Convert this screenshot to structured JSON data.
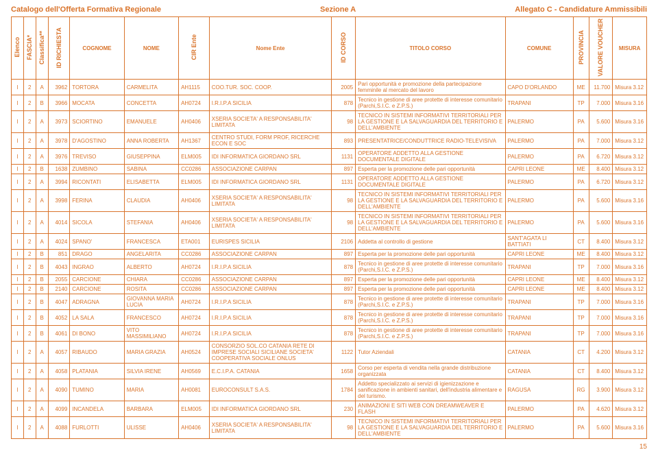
{
  "header": {
    "left": "Catalogo dell'Offerta Formativa Regionale",
    "center": "Sezione A",
    "right": "Allegato C - Candidature Ammissibili"
  },
  "columns": [
    "Elenco",
    "FASCIA*",
    "Classifica**",
    "ID RICHIESTA",
    "COGNOME",
    "NOME",
    "CIR Ente",
    "Nome Ente",
    "ID CORSO",
    "TITOLO CORSO",
    "COMUNE",
    "PROVINCIA",
    "VALORE VOUCHER",
    "MISURA"
  ],
  "rows": [
    [
      "I",
      "2",
      "A",
      "3962",
      "TORTORA",
      "CARMELITA",
      "AH1115",
      "COO.TUR. SOC. COOP.",
      "2005",
      "Pari opportunità e promozione della partecipazione femminile al mercato del lavoro",
      "CAPO D'ORLANDO",
      "ME",
      "11.700",
      "Misura 3.12"
    ],
    [
      "I",
      "2",
      "B",
      "3966",
      "MOCATA",
      "CONCETTA",
      "AH0724",
      "I.R.I.P.A SICILIA",
      "878",
      "Tecnico in gestione di aree protette di interesse comunitario (Parchi,S.I.C. e Z.P.S.)",
      "TRAPANI",
      "TP",
      "7.000",
      "Misura 3.16"
    ],
    [
      "I",
      "2",
      "A",
      "3973",
      "SCIORTINO",
      "EMANUELE",
      "AH0406",
      "XSERIA SOCIETA' A RESPONSABILITA' LIMITATA",
      "98",
      "TECNICO IN SISTEMI INFORMATIVI TERRITORIALI PER LA GESTIONE E LA SALVAGUARDIA DEL TERRITORIO E DELL'AMBIENTE",
      "PALERMO",
      "PA",
      "5.600",
      "Misura 3.16"
    ],
    [
      "I",
      "2",
      "A",
      "3978",
      "D'AGOSTINO",
      "ANNA ROBERTA",
      "AH1367",
      "CENTRO STUDI, FORM PROF, RICERCHE ECON E SOC",
      "893",
      "PRESENTATRICE/CONDUTTRICE RADIO-TELEVISIVA",
      "PALERMO",
      "PA",
      "7.000",
      "Misura 3.12"
    ],
    [
      "I",
      "2",
      "A",
      "3976",
      "TREVISO",
      "GIUSEPPINA",
      "ELM005",
      "IDI INFORMATICA GIORDANO SRL",
      "1131",
      "OPERATORE ADDETTO ALLA GESTIONE DOCUMENTALE DIGITALE",
      "PALERMO",
      "PA",
      "6.720",
      "Misura 3.12"
    ],
    [
      "I",
      "2",
      "B",
      "1638",
      "ZUMBINO",
      "SABINA",
      "CC0286",
      "ASSOCIAZIONE CARPAN",
      "897",
      "Esperta per la promozione delle pari opportunità",
      "CAPRI LEONE",
      "ME",
      "8.400",
      "Misura 3.12"
    ],
    [
      "I",
      "2",
      "A",
      "3994",
      "RICONTATI",
      "ELISABETTA",
      "ELM005",
      "IDI INFORMATICA GIORDANO SRL",
      "1131",
      "OPERATORE ADDETTO ALLA GESTIONE DOCUMENTALE DIGITALE",
      "PALERMO",
      "PA",
      "6.720",
      "Misura 3.12"
    ],
    [
      "I",
      "2",
      "A",
      "3998",
      "FERINA",
      "CLAUDIA",
      "AH0406",
      "XSERIA SOCIETA' A RESPONSABILITA' LIMITATA",
      "98",
      "TECNICO IN SISTEMI INFORMATIVI TERRITORIALI PER LA GESTIONE E LA SALVAGUARDIA DEL TERRITORIO E DELL'AMBIENTE",
      "PALERMO",
      "PA",
      "5.600",
      "Misura 3.16"
    ],
    [
      "I",
      "2",
      "A",
      "4014",
      "SICOLA",
      "STEFANIA",
      "AH0406",
      "XSERIA SOCIETA' A RESPONSABILITA' LIMITATA",
      "98",
      "TECNICO IN SISTEMI INFORMATIVI TERRITORIALI PER LA GESTIONE E LA SALVAGUARDIA DEL TERRITORIO E DELL'AMBIENTE",
      "PALERMO",
      "PA",
      "5.600",
      "Misura 3.16"
    ],
    [
      "I",
      "2",
      "A",
      "4024",
      "SPANO'",
      "FRANCESCA",
      "ETA001",
      "EURISPES SICILIA",
      "2106",
      "Addetta al controllo di gestione",
      "SANT'AGATA LI BATTIATI",
      "CT",
      "8.400",
      "Misura 3.12"
    ],
    [
      "I",
      "2",
      "B",
      "851",
      "DRAGO",
      "ANGELARITA",
      "CC0286",
      "ASSOCIAZIONE CARPAN",
      "897",
      "Esperta per la promozione delle pari opportunità",
      "CAPRI LEONE",
      "ME",
      "8.400",
      "Misura 3.12"
    ],
    [
      "I",
      "2",
      "B",
      "4043",
      "INGRAO",
      "ALBERTO",
      "AH0724",
      "I.R.I.P.A SICILIA",
      "878",
      "Tecnico in gestione di aree protette di interesse comunitario (Parchi,S.I.C. e Z.P.S.)",
      "TRAPANI",
      "TP",
      "7.000",
      "Misura 3.16"
    ],
    [
      "I",
      "2",
      "B",
      "2055",
      "CARCIONE",
      "CHIARA",
      "CC0286",
      "ASSOCIAZIONE CARPAN",
      "897",
      "Esperta per la promozione delle pari opportunità",
      "CAPRI LEONE",
      "ME",
      "8.400",
      "Misura 3.12"
    ],
    [
      "I",
      "2",
      "B",
      "2140",
      "CARCIONE",
      "ROSITA",
      "CC0286",
      "ASSOCIAZIONE CARPAN",
      "897",
      "Esperta per la promozione delle pari opportunità",
      "CAPRI LEONE",
      "ME",
      "8.400",
      "Misura 3.12"
    ],
    [
      "I",
      "2",
      "B",
      "4047",
      "ADRAGNA",
      "GIOVANNA MARIA LUCIA",
      "AH0724",
      "I.R.I.P.A SICILIA",
      "878",
      "Tecnico in gestione di aree protette di interesse comunitario (Parchi,S.I.C. e Z.P.S.)",
      "TRAPANI",
      "TP",
      "7.000",
      "Misura 3.16"
    ],
    [
      "I",
      "2",
      "B",
      "4052",
      "LA SALA",
      "FRANCESCO",
      "AH0724",
      "I.R.I.P.A SICILIA",
      "878",
      "Tecnico in gestione di aree protette di interesse comunitario (Parchi,S.I.C. e Z.P.S.)",
      "TRAPANI",
      "TP",
      "7.000",
      "Misura 3.16"
    ],
    [
      "I",
      "2",
      "B",
      "4061",
      "DI BONO",
      "VITO MASSIMILIANO",
      "AH0724",
      "I.R.I.P.A SICILIA",
      "878",
      "Tecnico in gestione di aree protette di interesse comunitario (Parchi,S.I.C. e Z.P.S.)",
      "TRAPANI",
      "TP",
      "7.000",
      "Misura 3.16"
    ],
    [
      "I",
      "2",
      "A",
      "4057",
      "RIBAUDO",
      "MARIA GRAZIA",
      "AH0524",
      "CONSORZIO SOL.CO CATANIA RETE DI IMPRESE SOCIALI SICILIANE SOCIETA' COOPERATIVA SOCIALE ONLUS",
      "1122",
      "Tutor Aziendali",
      "CATANIA",
      "CT",
      "4.200",
      "Misura 3.12"
    ],
    [
      "I",
      "2",
      "A",
      "4058",
      "PLATANIA",
      "SILVIA IRENE",
      "AH0569",
      "E.C.I.P.A. CATANIA",
      "1658",
      "Corso per esperta di vendita nella grande distribuzione organizzata",
      "CATANIA",
      "CT",
      "8.400",
      "Misura 3.12"
    ],
    [
      "I",
      "2",
      "A",
      "4090",
      "TUMINO",
      "MARIA",
      "AH0081",
      "EUROCONSULT S.A.S.",
      "1784",
      "Addetto specializzato ai servizi di igienizzazione e sanificazione in ambienti sanitari, dell'industria alimentare e del turismo.",
      "RAGUSA",
      "RG",
      "3.900",
      "Misura 3.12"
    ],
    [
      "I",
      "2",
      "A",
      "4099",
      "INCANDELA",
      "BARBARA",
      "ELM005",
      "IDI INFORMATICA GIORDANO SRL",
      "230",
      "ANIMAZIONI E SITI WEB CON DREAMWEAVER E FLASH",
      "PALERMO",
      "PA",
      "4.620",
      "Misura 3.12"
    ],
    [
      "I",
      "2",
      "A",
      "4088",
      "FURLOTTI",
      "ULISSE",
      "AH0406",
      "XSERIA SOCIETA' A RESPONSABILITA' LIMITATA",
      "98",
      "TECNICO IN SISTEMI INFORMATIVI TERRITORIALI PER LA GESTIONE E LA SALVAGUARDIA DEL TERRITORIO E DELL'AMBIENTE",
      "PALERMO",
      "PA",
      "5.600",
      "Misura 3.16"
    ]
  ],
  "page_number": "15",
  "vertical_cols": [
    0,
    1,
    2,
    3,
    6,
    8,
    11,
    12
  ],
  "center_cols": [
    0,
    1,
    2,
    11
  ],
  "right_cols": [
    3,
    8,
    12
  ]
}
